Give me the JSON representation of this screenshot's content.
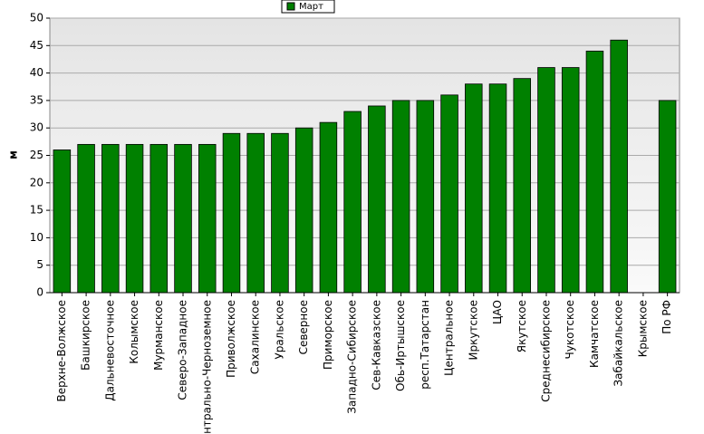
{
  "chart_data": {
    "type": "bar",
    "y_label": "м",
    "categories": [
      "Верхне-Волжское",
      "Башкирское",
      "Дальневосточное",
      "Колымское",
      "Мурманское",
      "Северо-Западное",
      "Центрально-Черноземное",
      "Приволжское",
      "Сахалинское",
      "Уральское",
      "Северное",
      "Приморское",
      "Западно-Сибирское",
      "Сев-Кавказское",
      "Обь-Иртышское",
      "респ.Татарстан",
      "Центральное",
      "Иркутское",
      "ЦАО",
      "Якутское",
      "Среднесибирское",
      "Чукотское",
      "Камчатское",
      "Забайкальское",
      "Крымское",
      "По РФ"
    ],
    "series": [
      {
        "name": "Март",
        "color": "#008000",
        "values": [
          26,
          27,
          27,
          27,
          27,
          27,
          27,
          29,
          29,
          29,
          30,
          31,
          33,
          34,
          35,
          35,
          36,
          38,
          38,
          39,
          41,
          41,
          44,
          46,
          null,
          35
        ]
      }
    ],
    "ylim": [
      0,
      50
    ],
    "yticks": [
      0,
      5,
      10,
      15,
      20,
      25,
      30,
      35,
      40,
      45,
      50
    ],
    "grid": true
  }
}
